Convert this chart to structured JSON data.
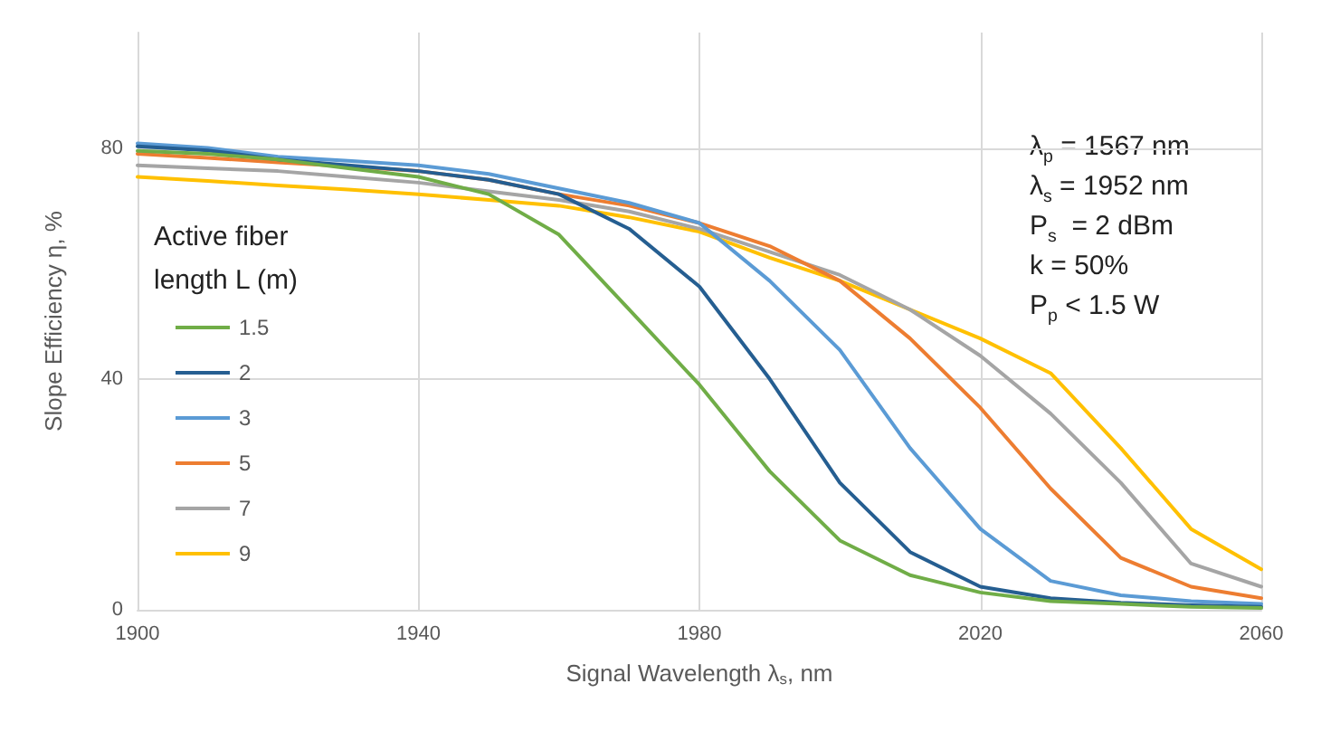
{
  "chart_data": {
    "type": "line",
    "xlabel": "Signal Wavelength λ$_{s}$, nm",
    "ylabel": "Slope Efficiency η, %",
    "legend_title": "Active fiber length L (m)",
    "legend": "left",
    "grid": true,
    "marker": "none",
    "line_style": "solid",
    "x": [
      1900,
      1910,
      1920,
      1930,
      1940,
      1950,
      1960,
      1970,
      1980,
      1990,
      2000,
      2010,
      2020,
      2030,
      2040,
      2050,
      2060
    ],
    "xlim": [
      1900,
      2060
    ],
    "xticks": [
      1900,
      1940,
      1980,
      2020,
      2060
    ],
    "ylim": [
      0,
      100
    ],
    "yticks": [
      0,
      40,
      80
    ],
    "series": [
      {
        "name": "1.5",
        "color": "#70ad47",
        "values": [
          79.5,
          79,
          78,
          76.5,
          75,
          72,
          65,
          52,
          39,
          24,
          12,
          6,
          3,
          1.5,
          1,
          0.5,
          0.3
        ]
      },
      {
        "name": "2",
        "color": "#255e91",
        "values": [
          80.3,
          79.6,
          78,
          77,
          76,
          74.5,
          72,
          66,
          56,
          40,
          22,
          10,
          4,
          2,
          1.2,
          0.8,
          0.5
        ]
      },
      {
        "name": "3",
        "color": "#5b9bd5",
        "values": [
          80.8,
          80,
          78.5,
          77.8,
          77,
          75.5,
          73,
          70.5,
          67,
          57,
          45,
          28,
          14,
          5,
          2.5,
          1.5,
          1
        ]
      },
      {
        "name": "5",
        "color": "#ed7d31",
        "values": [
          79,
          78.3,
          77.5,
          76.8,
          76,
          74.5,
          72,
          70,
          67,
          63,
          57,
          47,
          35,
          21,
          9,
          4,
          2
        ]
      },
      {
        "name": "7",
        "color": "#a5a5a5",
        "values": [
          77,
          76.5,
          76,
          75,
          74,
          72.5,
          71,
          69,
          66,
          62,
          58,
          52,
          44,
          34,
          22,
          8,
          4
        ]
      },
      {
        "name": "9",
        "color": "#ffc000",
        "values": [
          75,
          74.3,
          73.5,
          72.8,
          72,
          71,
          70,
          68,
          65.5,
          61,
          57,
          52,
          47,
          41,
          28,
          14,
          7
        ]
      }
    ],
    "annotations": [
      "λ$_{p}$ = 1567 nm",
      "λ$_{s}$ = 1952 nm",
      "P$_{s}$  = 2 dBm",
      "k = 50%",
      "P$_{p}$ < 1.5 W"
    ]
  }
}
